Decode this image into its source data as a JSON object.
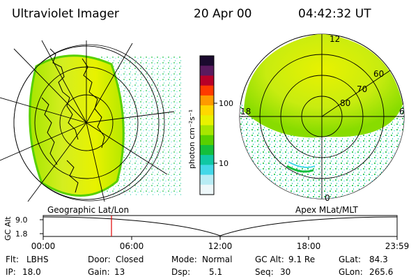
{
  "header": {
    "title": "Ultraviolet Imager",
    "date": "20 Apr 00",
    "time": "04:42:32 UT"
  },
  "colorbar": {
    "unit_label": "photon cm⁻²s⁻¹",
    "tick_labels": [
      "100",
      "10"
    ],
    "colors": [
      "#1b0a2e",
      "#5a1a5e",
      "#b80028",
      "#ff3a00",
      "#ff9a00",
      "#ffd800",
      "#e8f200",
      "#a6e600",
      "#58d000",
      "#14bf3c",
      "#10c8a4",
      "#44d8e8",
      "#b8ecf4",
      "#eef8fa"
    ]
  },
  "panels": {
    "left_label": "Geographic Lat/Lon",
    "right_label": "Apex MLat/MLT",
    "mlt_labels": [
      "12",
      "18",
      "6",
      "0"
    ],
    "mlat_labels": [
      "60",
      "70",
      "80"
    ]
  },
  "altitude_plot": {
    "axis_title": "GC Alt",
    "y_ticks": [
      "9.0",
      "1.8"
    ],
    "x_ticks": [
      "00:00",
      "06:00",
      "12:00",
      "18:00",
      "23:59"
    ],
    "marker_color": "#e00000"
  },
  "footer": {
    "rows": [
      [
        {
          "label": "Flt:",
          "value": "LBHS"
        },
        {
          "label": "Door:",
          "value": "Closed"
        },
        {
          "label": "Mode:",
          "value": "Normal"
        },
        {
          "label": "GC Alt:",
          "value": "9.1 Re"
        },
        {
          "label": "GLat:",
          "value": "84.3"
        }
      ],
      [
        {
          "label": "IP:",
          "value": "18.0"
        },
        {
          "label": "Gain:",
          "value": "13"
        },
        {
          "label": "Dsp:",
          "value": "5.1"
        },
        {
          "label": "Seq:",
          "value": "30"
        },
        {
          "label": "GLon:",
          "value": "265.6"
        }
      ]
    ]
  }
}
